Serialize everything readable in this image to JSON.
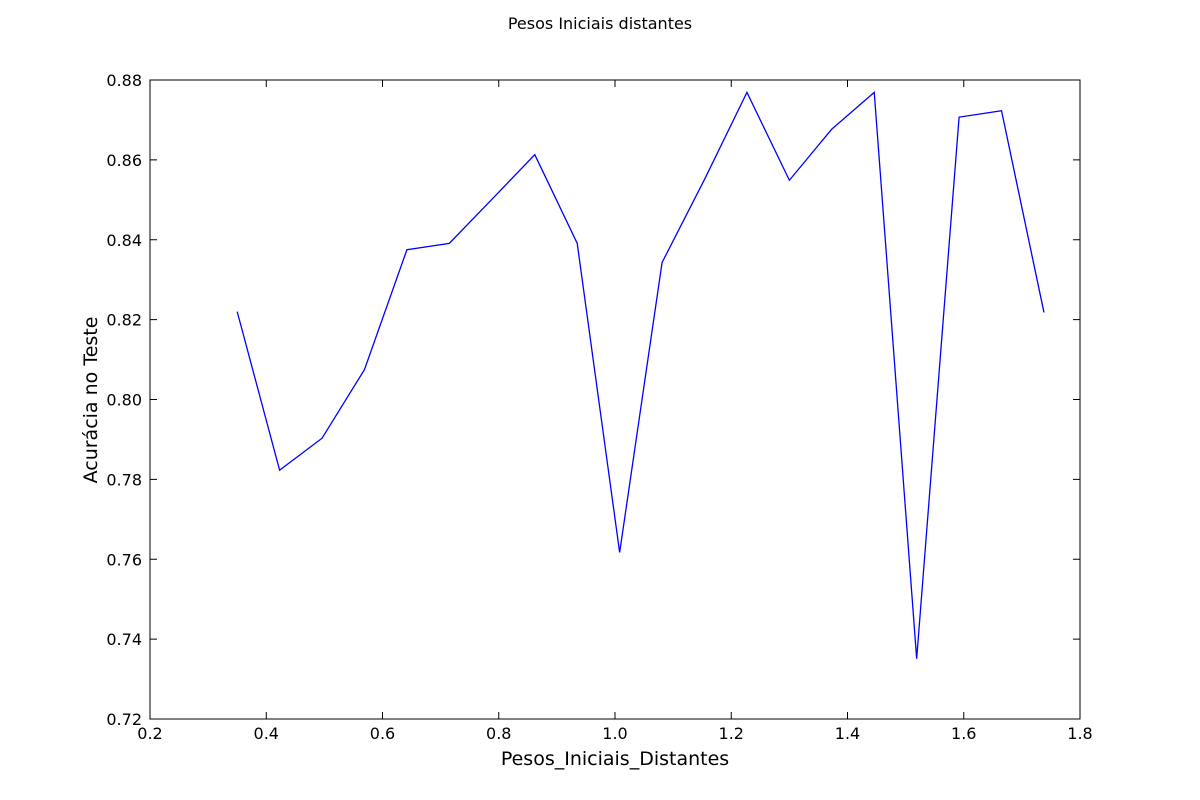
{
  "chart_data": {
    "type": "line",
    "title": "Pesos Iniciais distantes",
    "xlabel": "Pesos_Iniciais_Distantes",
    "ylabel": "Acurácia no Teste",
    "xlim": [
      0.2,
      1.8
    ],
    "ylim": [
      0.72,
      0.88
    ],
    "grid": false,
    "x_ticks": [
      "0.2",
      "0.4",
      "0.6",
      "0.8",
      "1.0",
      "1.2",
      "1.4",
      "1.6",
      "1.8"
    ],
    "y_ticks": [
      "0.72",
      "0.74",
      "0.76",
      "0.78",
      "0.80",
      "0.82",
      "0.84",
      "0.86",
      "0.88"
    ],
    "series": [
      {
        "color": "#0000ff",
        "x": [
          0.35,
          0.423,
          0.496,
          0.569,
          0.642,
          0.715,
          0.788,
          0.862,
          0.935,
          1.008,
          1.081,
          1.154,
          1.227,
          1.3,
          1.373,
          1.446,
          1.519,
          1.592,
          1.665,
          1.738
        ],
        "y": [
          0.822,
          0.7823,
          0.7903,
          0.8075,
          0.8375,
          0.8391,
          0.8501,
          0.8613,
          0.8391,
          0.7617,
          0.8343,
          0.8551,
          0.8769,
          0.8549,
          0.8677,
          0.8769,
          0.7351,
          0.8707,
          0.8723,
          0.8218
        ]
      }
    ]
  }
}
